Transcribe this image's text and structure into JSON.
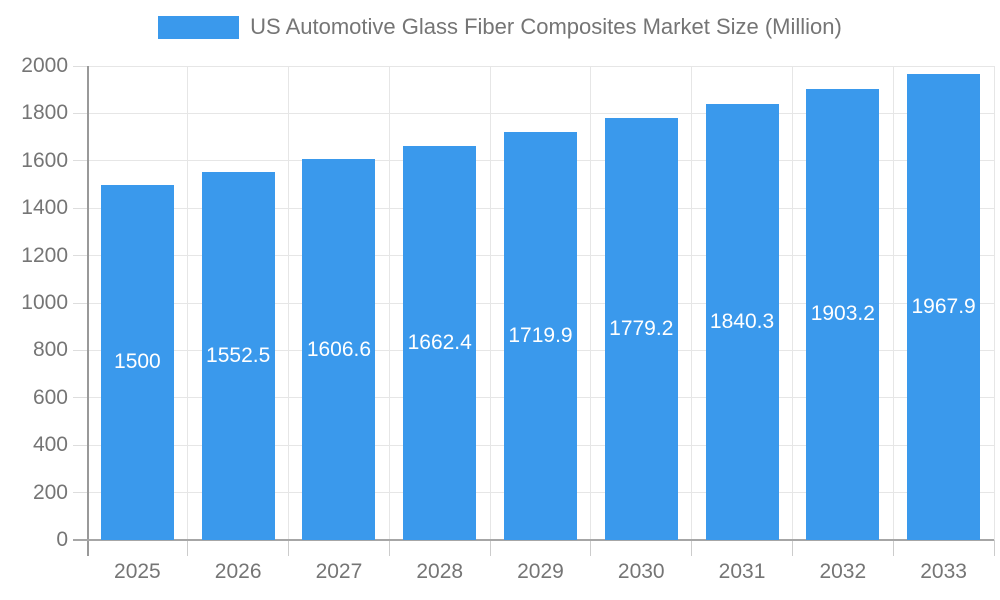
{
  "legend": {
    "label": "US Automotive Glass Fiber Composites Market Size (Million)",
    "swatch_color": "#3a99ec"
  },
  "chart_data": {
    "type": "bar",
    "title": "US Automotive Glass Fiber Composites Market Size (Million)",
    "categories": [
      "2025",
      "2026",
      "2027",
      "2028",
      "2029",
      "2030",
      "2031",
      "2032",
      "2033"
    ],
    "values": [
      1500,
      1552.5,
      1606.6,
      1662.4,
      1719.9,
      1779.2,
      1840.3,
      1903.2,
      1967.9
    ],
    "bar_labels": [
      "1500",
      "1552.5",
      "1606.6",
      "1662.4",
      "1719.9",
      "1779.2",
      "1840.3",
      "1903.2",
      "1967.9"
    ],
    "xlabel": "",
    "ylabel": "",
    "ylim": [
      0,
      2000
    ],
    "ytick_step": 200,
    "ytick_labels": [
      "0",
      "200",
      "400",
      "600",
      "800",
      "1000",
      "1200",
      "1400",
      "1600",
      "1800",
      "2000"
    ],
    "grid": true,
    "legend_position": "top",
    "colors": {
      "bar": "#3a99ec",
      "bar_value_label": "#ffffff",
      "axis_label": "#757575",
      "gridline": "#e6e6e6",
      "axis_line": "#a6a6a6",
      "background": "#ffffff"
    }
  }
}
